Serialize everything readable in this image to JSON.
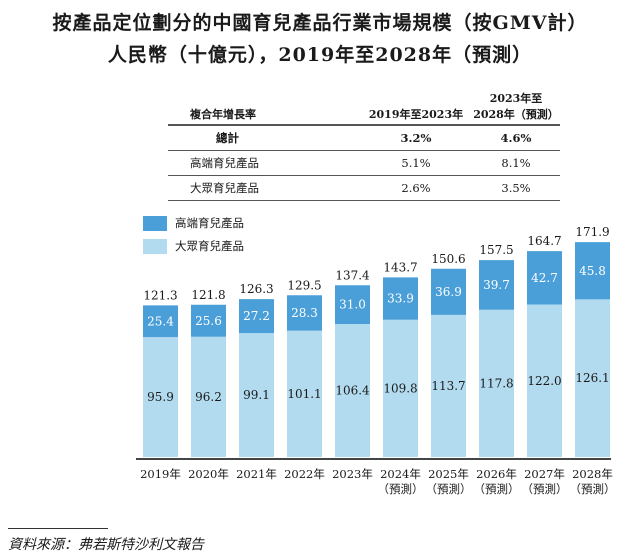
{
  "title_line1": "按產品定位劃分的中國育兒產品行業市場規模（按GMV計）",
  "title_line2": "人民幣（十億元），2019年至2028年（預測）",
  "cagr_table": {
    "headers": [
      "複合年增長率",
      "2019年至2023年",
      "2023年至",
      "2028年（預測）"
    ],
    "rows": [
      {
        "label": "總計",
        "v1": "3.2%",
        "v2": "4.6%"
      },
      {
        "label": "高端育兒產品",
        "v1": "5.1%",
        "v2": "8.1%"
      },
      {
        "label": "大眾育兒產品",
        "v1": "2.6%",
        "v2": "3.5%"
      }
    ]
  },
  "chart_data": {
    "type": "bar",
    "stacked": true,
    "categories": [
      "2019年",
      "2020年",
      "2021年",
      "2022年",
      "2023年",
      "2024年\n（預測）",
      "2025年\n（預測）",
      "2026年\n（預測）",
      "2027年\n（預測）",
      "2028年\n（預測）"
    ],
    "category_labels": [
      [
        "2019年",
        ""
      ],
      [
        "2020年",
        ""
      ],
      [
        "2021年",
        ""
      ],
      [
        "2022年",
        ""
      ],
      [
        "2023年",
        ""
      ],
      [
        "2024年",
        "（預測）"
      ],
      [
        "2025年",
        "（預測）"
      ],
      [
        "2026年",
        "（預測）"
      ],
      [
        "2027年",
        "（預測）"
      ],
      [
        "2028年",
        "（預測）"
      ]
    ],
    "series": [
      {
        "name": "大眾育兒產品",
        "color": "#b3dbf0",
        "values": [
          95.9,
          96.2,
          99.1,
          101.1,
          106.4,
          109.8,
          113.7,
          117.8,
          122.0,
          126.1
        ],
        "labels": [
          "95.9",
          "96.2",
          "99.1",
          "101.1",
          "106.4",
          "109.8",
          "113.7",
          "117.8",
          "122.0",
          "126.1"
        ]
      },
      {
        "name": "高端育兒產品",
        "color": "#4a9fd8",
        "values": [
          25.4,
          25.6,
          27.2,
          28.3,
          31.0,
          33.9,
          36.9,
          39.7,
          42.7,
          45.8
        ],
        "labels": [
          "25.4",
          "25.6",
          "27.2",
          "28.3",
          "31.0",
          "33.9",
          "36.9",
          "39.7",
          "42.7",
          "45.8"
        ]
      }
    ],
    "totals": [
      "121.3",
      "121.8",
      "126.3",
      "129.5",
      "137.4",
      "143.7",
      "150.6",
      "157.5",
      "164.7",
      "171.9"
    ],
    "legend": [
      "高端育兒產品",
      "大眾育兒產品"
    ],
    "legend_position": "top-left",
    "ylim": [
      0,
      180
    ],
    "grid": false,
    "y_axis_shown": false
  },
  "source": "資料來源：弗若斯特沙利文報告"
}
